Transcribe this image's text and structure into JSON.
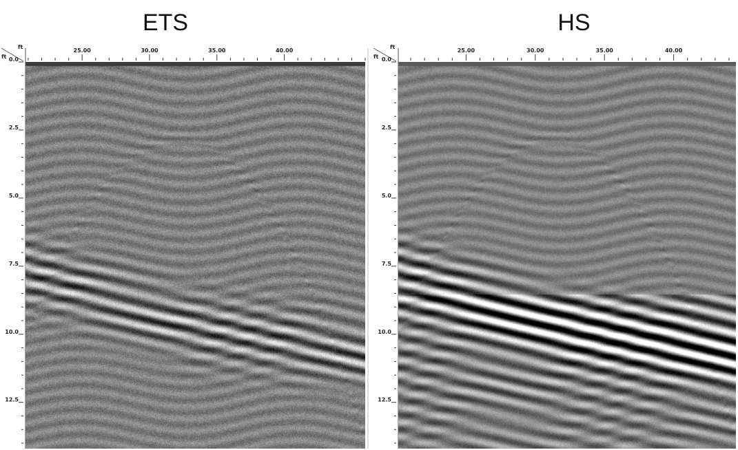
{
  "panels": [
    {
      "title": "ETS",
      "x_unit": "ft",
      "y_unit": "ft",
      "x_range": [
        20.8,
        46.0
      ],
      "y_range": [
        0,
        14.2
      ],
      "x_ticks": [
        "25.00",
        "30.00",
        "35.00",
        "40.00"
      ],
      "x_tick_values": [
        25,
        30,
        35,
        40
      ],
      "y_ticks": [
        "0.0",
        "2.5",
        "5.0",
        "7.5",
        "10.0",
        "12.5"
      ],
      "y_tick_values": [
        0,
        2.5,
        5,
        7.5,
        10,
        12.5
      ],
      "colormap": "grayscale"
    },
    {
      "title": "HS",
      "x_unit": "ft",
      "y_unit": "ft",
      "x_range": [
        20.1,
        44.5
      ],
      "y_range": [
        0,
        14.2
      ],
      "x_ticks": [
        "25.00",
        "30.00",
        "35.00",
        "40.00"
      ],
      "x_tick_values": [
        25,
        30,
        35,
        40
      ],
      "y_ticks": [
        "0.0",
        "2.5",
        "5.0",
        "7.5",
        "10.0",
        "12.5"
      ],
      "y_tick_values": [
        0,
        2.5,
        5,
        7.5,
        10,
        12.5
      ],
      "colormap": "grayscale"
    }
  ]
}
